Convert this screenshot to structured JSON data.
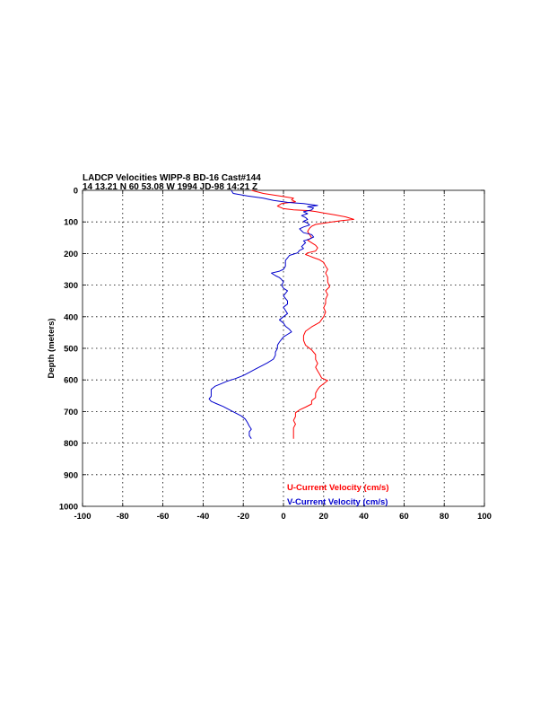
{
  "chart_data": {
    "type": "line",
    "title_line1": "LADCP Velocities WIPP-8 BD-16 Cast#144",
    "title_line2": "14 13.21 N  60 53.08 W  1994 JD-98 14:21 Z",
    "xlabel": "",
    "ylabel": "Depth (meters)",
    "xlim": [
      -100,
      100
    ],
    "ylim": [
      0,
      1000
    ],
    "y_inverted": true,
    "grid": true,
    "x_ticks": [
      -100,
      -80,
      -60,
      -40,
      -20,
      0,
      20,
      40,
      60,
      80,
      100
    ],
    "y_ticks": [
      0,
      100,
      200,
      300,
      400,
      500,
      600,
      700,
      800,
      900,
      1000
    ],
    "legend_placement": "bottom-right",
    "series": [
      {
        "name": "U-Current Velocity (cm/s)",
        "color": "#ff0000",
        "points": [
          [
            -16,
            0
          ],
          [
            -10,
            10
          ],
          [
            -2,
            18
          ],
          [
            5,
            25
          ],
          [
            4,
            30
          ],
          [
            6,
            36
          ],
          [
            -1,
            42
          ],
          [
            -3,
            50
          ],
          [
            0,
            58
          ],
          [
            5,
            62
          ],
          [
            12,
            64
          ],
          [
            16,
            67
          ],
          [
            20,
            72
          ],
          [
            26,
            78
          ],
          [
            31,
            84
          ],
          [
            35,
            92
          ],
          [
            29,
            96
          ],
          [
            24,
            100
          ],
          [
            20,
            104
          ],
          [
            16,
            108
          ],
          [
            14,
            114
          ],
          [
            13,
            120
          ],
          [
            12,
            130
          ],
          [
            13,
            140
          ],
          [
            14,
            150
          ],
          [
            12,
            158
          ],
          [
            14,
            166
          ],
          [
            16,
            174
          ],
          [
            17,
            182
          ],
          [
            16,
            192
          ],
          [
            12,
            198
          ],
          [
            11,
            203
          ],
          [
            13,
            208
          ],
          [
            15,
            213
          ],
          [
            18,
            220
          ],
          [
            20,
            228
          ],
          [
            21,
            240
          ],
          [
            22,
            250
          ],
          [
            21,
            262
          ],
          [
            22,
            275
          ],
          [
            22,
            290
          ],
          [
            23,
            305
          ],
          [
            21,
            318
          ],
          [
            22,
            330
          ],
          [
            21,
            345
          ],
          [
            21,
            358
          ],
          [
            20,
            372
          ],
          [
            21,
            385
          ],
          [
            20,
            400
          ],
          [
            18,
            418
          ],
          [
            14,
            432
          ],
          [
            11,
            446
          ],
          [
            10,
            460
          ],
          [
            10,
            475
          ],
          [
            11,
            490
          ],
          [
            14,
            505
          ],
          [
            16,
            520
          ],
          [
            16,
            535
          ],
          [
            17,
            548
          ],
          [
            16,
            560
          ],
          [
            17,
            572
          ],
          [
            18,
            582
          ],
          [
            19,
            594
          ],
          [
            22,
            602
          ],
          [
            20,
            612
          ],
          [
            18,
            622
          ],
          [
            17,
            630
          ],
          [
            16,
            642
          ],
          [
            16,
            656
          ],
          [
            14,
            666
          ],
          [
            14,
            676
          ],
          [
            11,
            686
          ],
          [
            8,
            695
          ],
          [
            6,
            704
          ],
          [
            6,
            716
          ],
          [
            5,
            728
          ],
          [
            6,
            740
          ],
          [
            5,
            752
          ],
          [
            5,
            764
          ],
          [
            5,
            776
          ],
          [
            5,
            786
          ]
        ]
      },
      {
        "name": "V-Current Velocity (cm/s)",
        "color": "#0000cc",
        "points": [
          [
            -26,
            0
          ],
          [
            -25,
            10
          ],
          [
            -18,
            18
          ],
          [
            -10,
            25
          ],
          [
            -5,
            32
          ],
          [
            2,
            38
          ],
          [
            6,
            40
          ],
          [
            10,
            42
          ],
          [
            17,
            48
          ],
          [
            12,
            52
          ],
          [
            15,
            56
          ],
          [
            14,
            62
          ],
          [
            10,
            68
          ],
          [
            12,
            74
          ],
          [
            9,
            80
          ],
          [
            11,
            86
          ],
          [
            12,
            92
          ],
          [
            10,
            98
          ],
          [
            12,
            104
          ],
          [
            13,
            110
          ],
          [
            10,
            116
          ],
          [
            8,
            122
          ],
          [
            9,
            128
          ],
          [
            10,
            134
          ],
          [
            14,
            140
          ],
          [
            15,
            148
          ],
          [
            13,
            154
          ],
          [
            10,
            160
          ],
          [
            11,
            166
          ],
          [
            10,
            172
          ],
          [
            9,
            178
          ],
          [
            10,
            184
          ],
          [
            8,
            190
          ],
          [
            7,
            198
          ],
          [
            3,
            206
          ],
          [
            2,
            214
          ],
          [
            1,
            222
          ],
          [
            1,
            232
          ],
          [
            1,
            240
          ],
          [
            0,
            250
          ],
          [
            -2,
            256
          ],
          [
            -6,
            262
          ],
          [
            -4,
            270
          ],
          [
            -2,
            276
          ],
          [
            -1,
            282
          ],
          [
            0,
            290
          ],
          [
            -1,
            300
          ],
          [
            0,
            310
          ],
          [
            2,
            318
          ],
          [
            1,
            326
          ],
          [
            0,
            334
          ],
          [
            1,
            342
          ],
          [
            2,
            350
          ],
          [
            2,
            360
          ],
          [
            0,
            370
          ],
          [
            1,
            380
          ],
          [
            2,
            390
          ],
          [
            0,
            400
          ],
          [
            -2,
            410
          ],
          [
            0,
            420
          ],
          [
            1,
            430
          ],
          [
            3,
            440
          ],
          [
            4,
            448
          ],
          [
            2,
            456
          ],
          [
            0,
            464
          ],
          [
            -1,
            472
          ],
          [
            -2,
            480
          ],
          [
            -3,
            490
          ],
          [
            -3,
            500
          ],
          [
            -4,
            512
          ],
          [
            -4,
            522
          ],
          [
            -5,
            534
          ],
          [
            -8,
            546
          ],
          [
            -11,
            556
          ],
          [
            -14,
            566
          ],
          [
            -17,
            576
          ],
          [
            -20,
            586
          ],
          [
            -24,
            596
          ],
          [
            -28,
            604
          ],
          [
            -31,
            612
          ],
          [
            -34,
            620
          ],
          [
            -36,
            630
          ],
          [
            -36,
            642
          ],
          [
            -36,
            652
          ],
          [
            -37,
            660
          ],
          [
            -36,
            668
          ],
          [
            -33,
            676
          ],
          [
            -30,
            684
          ],
          [
            -27,
            694
          ],
          [
            -24,
            704
          ],
          [
            -21,
            714
          ],
          [
            -19,
            724
          ],
          [
            -18,
            734
          ],
          [
            -17,
            746
          ],
          [
            -16,
            756
          ],
          [
            -17,
            764
          ],
          [
            -17,
            776
          ],
          [
            -16,
            786
          ]
        ]
      }
    ]
  }
}
